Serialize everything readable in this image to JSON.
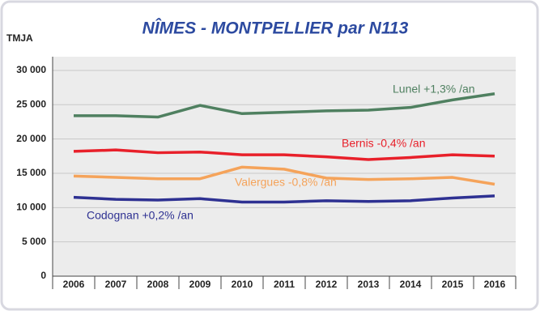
{
  "chart_data": {
    "type": "line",
    "title": "NÎMES - MONTPELLIER par N113",
    "y_label": "TMJA",
    "categories": [
      "2006",
      "2007",
      "2008",
      "2009",
      "2010",
      "2011",
      "2012",
      "2013",
      "2014",
      "2015",
      "2016"
    ],
    "series": [
      {
        "name": "Lunel +1,3% /an",
        "color": "#4f8060",
        "values": [
          23400,
          23400,
          23200,
          24900,
          23700,
          23900,
          24100,
          24200,
          24600,
          25700,
          26600
        ]
      },
      {
        "name": "Bernis -0,4% /an",
        "color": "#e8202a",
        "values": [
          18200,
          18400,
          18000,
          18100,
          17700,
          17700,
          17400,
          17000,
          17300,
          17700,
          17500
        ]
      },
      {
        "name": "Valergues -0,8% /an",
        "color": "#f5a35a",
        "values": [
          14600,
          14400,
          14200,
          14200,
          15900,
          15600,
          14300,
          14100,
          14200,
          14400,
          13400
        ]
      },
      {
        "name": "Codognan +0,2% /an",
        "color": "#2e3192",
        "values": [
          11500,
          11200,
          11100,
          11300,
          10800,
          10800,
          11000,
          10900,
          11000,
          11400,
          11700
        ]
      }
    ],
    "ylim": [
      0,
      32000
    ],
    "yticks": [
      0,
      {
        "value": 5000,
        "label": "5 000"
      },
      {
        "value": 10000,
        "label": "10 000"
      },
      {
        "value": 15000,
        "label": "15 000"
      },
      {
        "value": 20000,
        "label": "20 000"
      },
      {
        "value": 25000,
        "label": "25 000"
      },
      {
        "value": 30000,
        "label": "30 000"
      }
    ],
    "grid": true
  }
}
